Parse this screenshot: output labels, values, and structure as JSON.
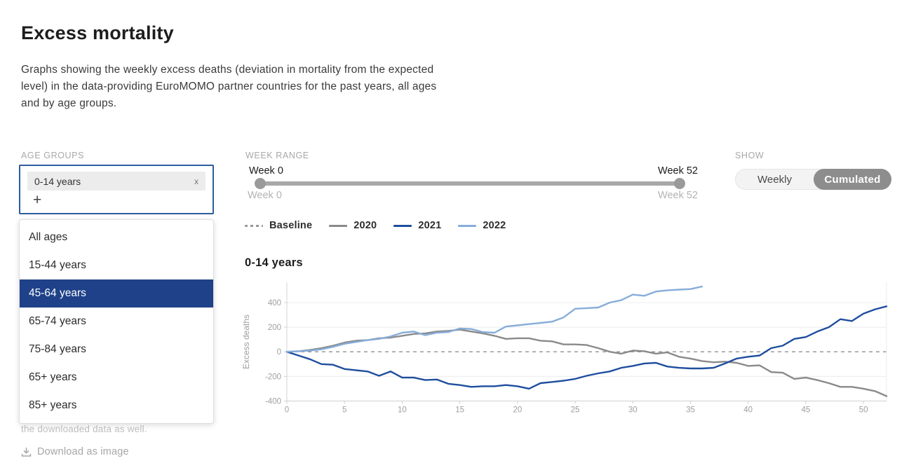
{
  "page": {
    "title": "Excess mortality",
    "description": "Graphs showing the weekly excess deaths (deviation in mortality from the expected level) in the data-providing EuroMOMO partner countries for the past years, all ages and by age groups.",
    "note": "the downloaded data as well.",
    "download_label": "Download as image"
  },
  "colors": {
    "accent_blue_border": "#2e5c9e",
    "dropdown_highlight": "#1e4189",
    "toggle_selected": "#8d8d8d",
    "slider_gray": "#a8a8a8"
  },
  "controls": {
    "age_groups": {
      "label": "AGE GROUPS",
      "selected_chip": "0-14 years",
      "chip_remove": "x",
      "add_button": "+",
      "dropdown_options": [
        "All ages",
        "15-44 years",
        "45-64 years",
        "65-74 years",
        "75-84 years",
        "65+ years",
        "85+ years"
      ],
      "highlighted_option": "45-64 years"
    },
    "week_range": {
      "label": "WEEK RANGE",
      "start_label": "Week 0",
      "end_label": "Week 52",
      "start_sub": "Week 0",
      "end_sub": "Week 52"
    },
    "show": {
      "label": "SHOW",
      "options": [
        "Weekly",
        "Cumulated"
      ],
      "selected": "Cumulated"
    }
  },
  "legend": [
    {
      "label": "Baseline",
      "color": "#999999",
      "dashed": true
    },
    {
      "label": "2020",
      "color": "#8a8a8a",
      "dashed": false
    },
    {
      "label": "2021",
      "color": "#1f4e9e",
      "dashed": false
    },
    {
      "label": "2022",
      "color": "#87add9",
      "dashed": false
    }
  ],
  "chart_data": {
    "type": "line",
    "title": "0-14 years",
    "xlabel": "",
    "ylabel": "Excess deaths",
    "xlim": [
      0,
      52
    ],
    "ylim": [
      -400,
      565
    ],
    "yticks": [
      400,
      200,
      0,
      -200,
      -400
    ],
    "xticks": [
      0,
      5,
      10,
      15,
      20,
      25,
      30,
      35,
      40,
      45,
      50
    ],
    "baseline": 0,
    "grid": true,
    "legend_position": "top",
    "x_unit": "week",
    "series": [
      {
        "name": "2020",
        "color": "#8a8a8a",
        "x_start": 0,
        "x_step": 1,
        "values": [
          0,
          5,
          15,
          30,
          50,
          75,
          90,
          95,
          110,
          115,
          130,
          145,
          150,
          165,
          170,
          180,
          165,
          150,
          130,
          105,
          110,
          110,
          90,
          85,
          60,
          60,
          55,
          30,
          0,
          -15,
          10,
          5,
          -15,
          -5,
          -40,
          -55,
          -75,
          -85,
          -80,
          -90,
          -115,
          -110,
          -165,
          -170,
          -220,
          -210,
          -230,
          -255,
          -285,
          -285,
          -300,
          -320,
          -360
        ]
      },
      {
        "name": "2021",
        "color": "#1f4e9e",
        "x_start": 0,
        "x_step": 1,
        "values": [
          0,
          -30,
          -60,
          -100,
          -105,
          -140,
          -150,
          -160,
          -195,
          -160,
          -210,
          -210,
          -230,
          -225,
          -260,
          -270,
          -285,
          -280,
          -280,
          -270,
          -280,
          -300,
          -255,
          -245,
          -235,
          -220,
          -195,
          -175,
          -160,
          -130,
          -115,
          -95,
          -90,
          -120,
          -130,
          -135,
          -135,
          -130,
          -95,
          -55,
          -40,
          -30,
          30,
          50,
          105,
          120,
          165,
          200,
          265,
          250,
          310,
          345,
          370
        ]
      },
      {
        "name": "2022",
        "color": "#87add9",
        "x_start": 0,
        "x_step": 1,
        "values": [
          0,
          5,
          10,
          20,
          40,
          65,
          80,
          95,
          105,
          125,
          155,
          165,
          135,
          155,
          160,
          190,
          185,
          160,
          155,
          205,
          215,
          225,
          235,
          245,
          280,
          350,
          355,
          360,
          400,
          420,
          465,
          455,
          490,
          500,
          505,
          510,
          530
        ]
      }
    ]
  }
}
